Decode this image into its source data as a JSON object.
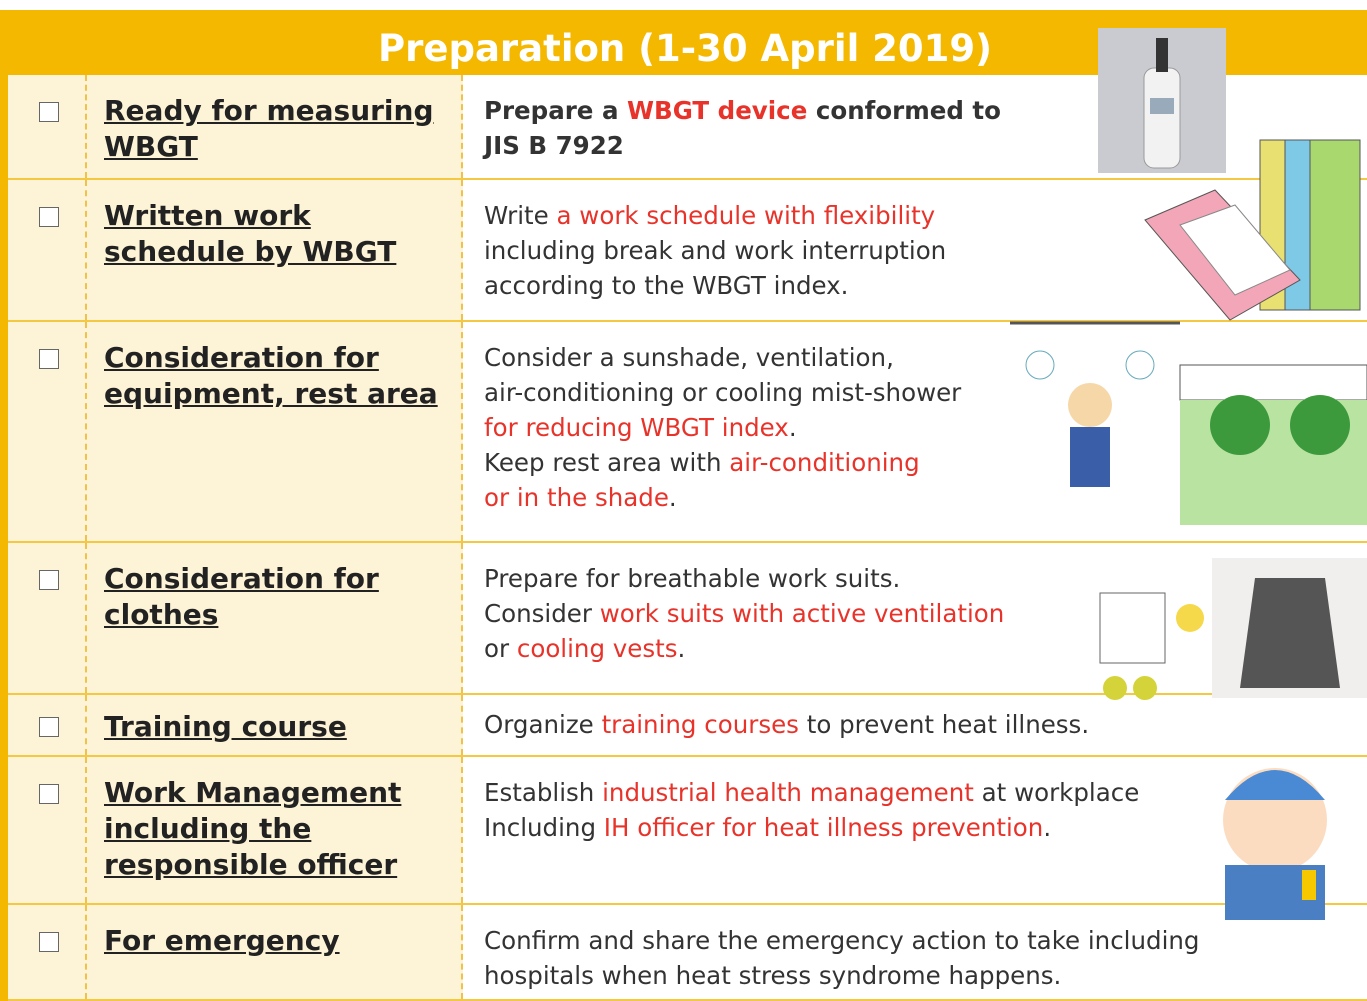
{
  "title": "Preparation (1-30 April 2019)",
  "rows": [
    {
      "item": "Ready for measuring WBGT",
      "bold_description": true,
      "description": [
        [
          {
            "text": "Prepare a "
          },
          {
            "text": "WBGT device",
            "highlight": true
          },
          {
            "text": " conformed to"
          }
        ],
        [
          {
            "text": "JIS B 7922"
          }
        ]
      ]
    },
    {
      "item": "Written work schedule by WBGT",
      "description": [
        [
          {
            "text": "Write "
          },
          {
            "text": "a work schedule with flexibility",
            "highlight": true
          }
        ],
        [
          {
            "text": "including break and work interruption"
          }
        ],
        [
          {
            "text": "according to the WBGT index."
          }
        ]
      ]
    },
    {
      "item": "Consideration for equipment, rest area",
      "description": [
        [
          {
            "text": "Consider a sunshade, ventilation,"
          }
        ],
        [
          {
            "text": "air-conditioning or cooling mist-shower"
          }
        ],
        [
          {
            "text": "for reducing WBGT index",
            "highlight": true
          },
          {
            "text": "."
          }
        ],
        [
          {
            "text": "Keep rest area with "
          },
          {
            "text": "air-conditioning",
            "highlight": true
          }
        ],
        [
          {
            "text": "or in the shade",
            "highlight": true
          },
          {
            "text": "."
          }
        ]
      ]
    },
    {
      "item": "Consideration for clothes",
      "description": [
        [
          {
            "text": "Prepare for breathable work suits."
          }
        ],
        [
          {
            "text": "Consider "
          },
          {
            "text": "work suits with active ventilation",
            "highlight": true
          }
        ],
        [
          {
            "text": "or "
          },
          {
            "text": "cooling vests",
            "highlight": true
          },
          {
            "text": "."
          }
        ]
      ]
    },
    {
      "item": "Training course",
      "description": [
        [
          {
            "text": "Organize "
          },
          {
            "text": "training courses",
            "highlight": true
          },
          {
            "text": " to prevent heat illness."
          }
        ]
      ]
    },
    {
      "item": "Work Management including the responsible officer",
      "description": [
        [
          {
            "text": "Establish "
          },
          {
            "text": "industrial health management",
            "highlight": true
          },
          {
            "text": " at workplace"
          }
        ],
        [
          {
            "text": "Including "
          },
          {
            "text": "IH officer for heat illness prevention",
            "highlight": true
          },
          {
            "text": "."
          }
        ]
      ]
    },
    {
      "item": "For emergency",
      "description": [
        [
          {
            "text": "Confirm and share the emergency action to take including"
          }
        ],
        [
          {
            "text": "hospitals when heat stress syndrome happens."
          }
        ]
      ]
    }
  ]
}
